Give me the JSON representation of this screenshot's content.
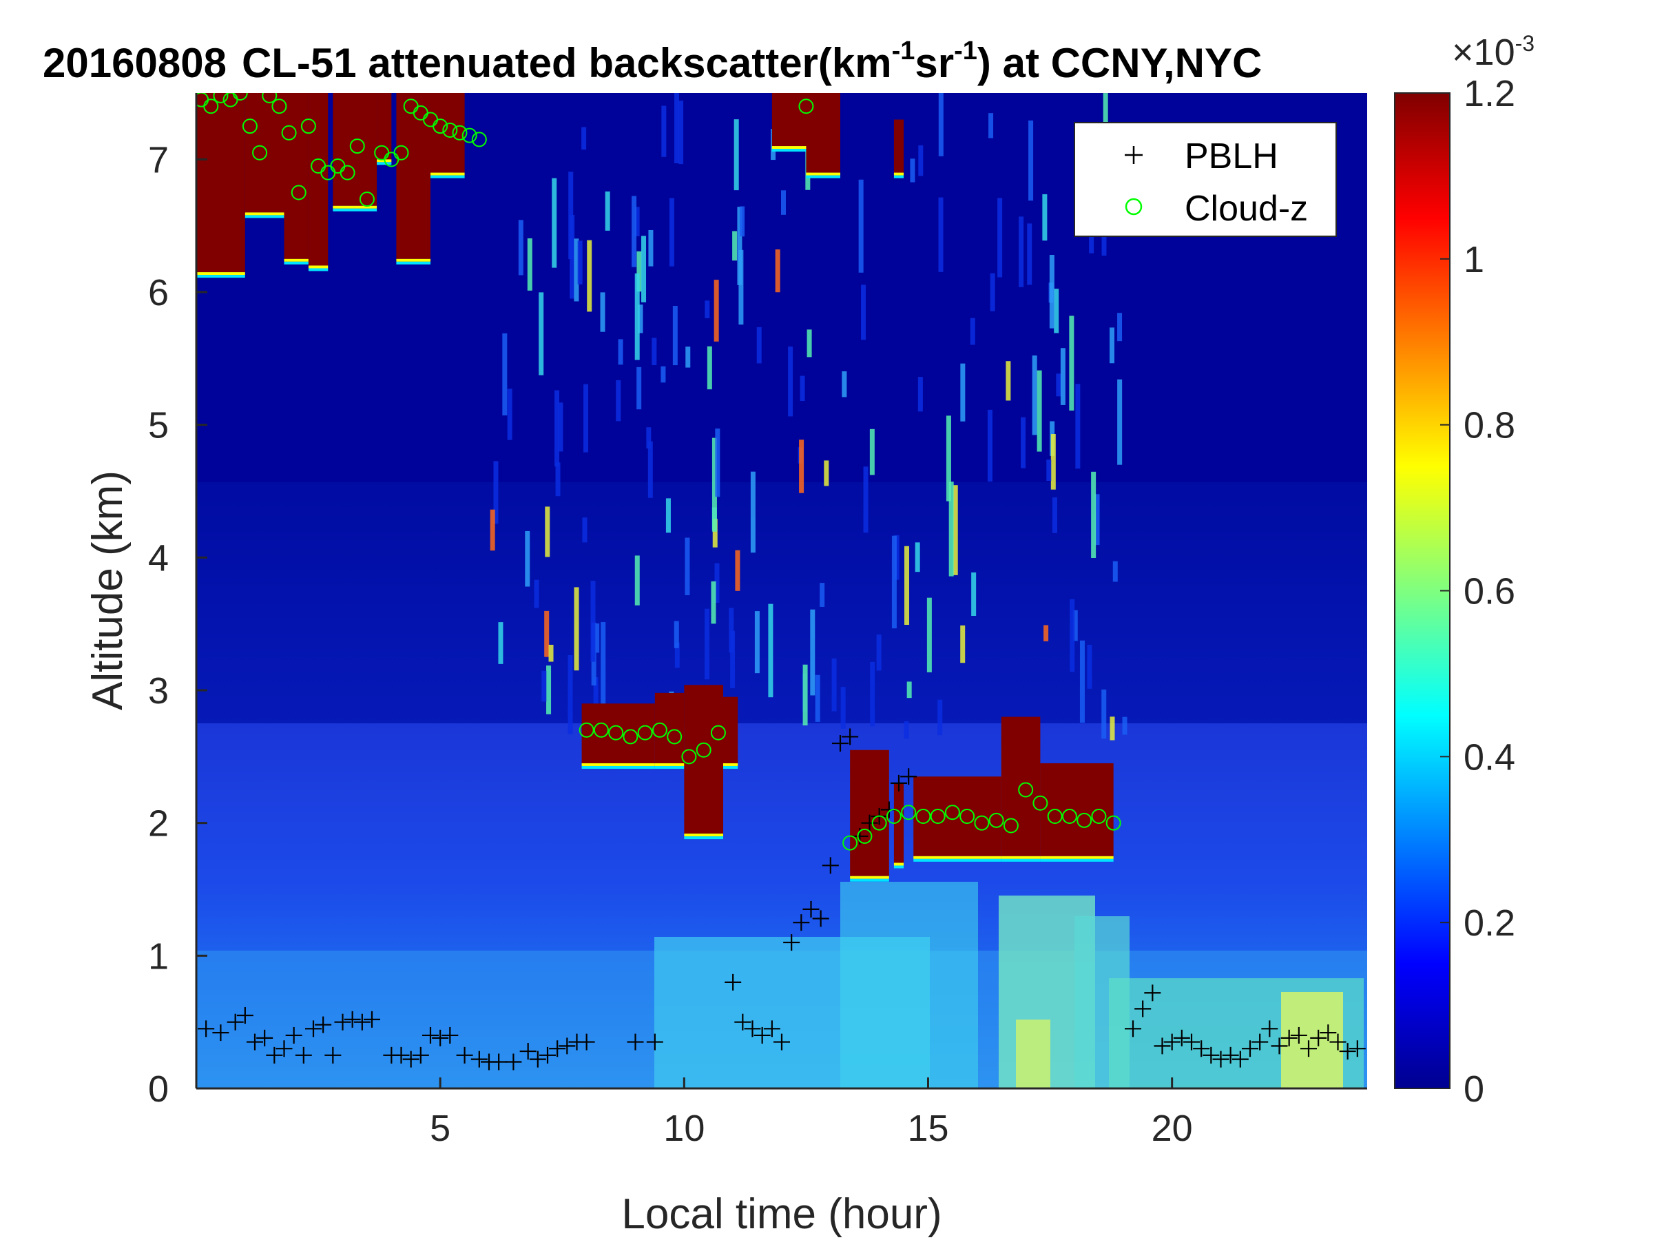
{
  "chart_data": {
    "type": "heatmap",
    "title": {
      "date": "20160808",
      "main": "CL-51 attenuated backscatter(km",
      "sup1": "-1",
      "mid": "sr",
      "sup2": "-1",
      "end": ") at CCNY,NYC"
    },
    "xlabel": "Local time (hour)",
    "ylabel": "Altitude (km)",
    "xlim": [
      0,
      24
    ],
    "ylim": [
      0,
      7.5
    ],
    "xticks": [
      "5",
      "10",
      "15",
      "20"
    ],
    "yticks": [
      "0",
      "1",
      "2",
      "3",
      "4",
      "5",
      "6",
      "7"
    ],
    "colorbar": {
      "min": 0,
      "max": 0.0012,
      "ticks": [
        "0",
        "0.2",
        "0.4",
        "0.6",
        "0.8",
        "1",
        "1.2"
      ],
      "exponent_label": "×10",
      "exponent": "-3",
      "colormap": "jet"
    },
    "legend": {
      "placement": "top-right",
      "entries": [
        {
          "label": "PBLH",
          "marker": "+",
          "color": "#000000"
        },
        {
          "label": "Cloud-z",
          "marker": "o",
          "color": "#00ff00"
        }
      ]
    },
    "cloud_regions": [
      {
        "t0": 0.0,
        "t1": 1.0,
        "base": 6.15,
        "top": 7.5
      },
      {
        "t0": 1.0,
        "t1": 1.8,
        "base": 6.6,
        "top": 7.5
      },
      {
        "t0": 1.8,
        "t1": 2.3,
        "base": 6.25,
        "top": 7.5
      },
      {
        "t0": 2.3,
        "t1": 2.7,
        "base": 6.2,
        "top": 7.5
      },
      {
        "t0": 2.8,
        "t1": 3.7,
        "base": 6.65,
        "top": 7.5
      },
      {
        "t0": 3.7,
        "t1": 4.0,
        "base": 7.0,
        "top": 7.5
      },
      {
        "t0": 4.1,
        "t1": 4.8,
        "base": 6.25,
        "top": 7.5
      },
      {
        "t0": 4.8,
        "t1": 5.5,
        "base": 6.9,
        "top": 7.5
      },
      {
        "t0": 11.8,
        "t1": 12.8,
        "base": 7.1,
        "top": 7.5
      },
      {
        "t0": 12.5,
        "t1": 13.2,
        "base": 6.9,
        "top": 7.5
      },
      {
        "t0": 14.3,
        "t1": 14.5,
        "base": 6.9,
        "top": 7.3
      },
      {
        "t0": 7.9,
        "t1": 9.4,
        "base": 2.45,
        "top": 2.9
      },
      {
        "t0": 9.4,
        "t1": 10.0,
        "base": 2.45,
        "top": 2.98
      },
      {
        "t0": 10.0,
        "t1": 10.8,
        "base": 1.92,
        "top": 3.04
      },
      {
        "t0": 10.8,
        "t1": 11.1,
        "base": 2.45,
        "top": 2.95
      },
      {
        "t0": 13.4,
        "t1": 14.2,
        "base": 1.6,
        "top": 2.55
      },
      {
        "t0": 14.3,
        "t1": 14.5,
        "base": 1.7,
        "top": 2.3
      },
      {
        "t0": 14.7,
        "t1": 16.5,
        "base": 1.75,
        "top": 2.35
      },
      {
        "t0": 16.5,
        "t1": 17.3,
        "base": 1.75,
        "top": 2.8
      },
      {
        "t0": 17.3,
        "t1": 18.8,
        "base": 1.75,
        "top": 2.45
      }
    ],
    "series": [
      {
        "name": "PBLH",
        "marker": "+",
        "x": [
          0.2,
          0.5,
          0.8,
          1.0,
          1.2,
          1.4,
          1.6,
          1.8,
          2.0,
          2.2,
          2.4,
          2.6,
          2.8,
          3.0,
          3.2,
          3.4,
          3.6,
          4.0,
          4.2,
          4.4,
          4.6,
          4.8,
          5.0,
          5.2,
          5.5,
          5.8,
          6.0,
          6.2,
          6.5,
          6.8,
          7.0,
          7.2,
          7.4,
          7.6,
          7.8,
          8.0,
          9.0,
          9.4,
          11.0,
          11.2,
          11.4,
          11.6,
          11.8,
          12.0,
          12.2,
          12.4,
          12.6,
          12.8,
          13.0,
          13.2,
          13.4,
          13.6,
          13.8,
          14.0,
          14.2,
          14.4,
          14.6,
          19.2,
          19.4,
          19.6,
          19.8,
          20.0,
          20.2,
          20.4,
          20.6,
          20.8,
          21.0,
          21.2,
          21.4,
          21.6,
          21.8,
          22.0,
          22.2,
          22.4,
          22.6,
          22.8,
          23.0,
          23.2,
          23.4,
          23.6,
          23.8
        ],
        "y": [
          0.45,
          0.42,
          0.5,
          0.55,
          0.35,
          0.38,
          0.25,
          0.3,
          0.4,
          0.25,
          0.45,
          0.48,
          0.25,
          0.5,
          0.52,
          0.5,
          0.52,
          0.25,
          0.25,
          0.22,
          0.25,
          0.4,
          0.38,
          0.4,
          0.25,
          0.22,
          0.2,
          0.2,
          0.2,
          0.28,
          0.22,
          0.25,
          0.3,
          0.32,
          0.35,
          0.35,
          0.35,
          0.35,
          0.8,
          0.5,
          0.45,
          0.4,
          0.45,
          0.35,
          1.1,
          1.25,
          1.35,
          1.28,
          1.68,
          2.6,
          2.65,
          1.9,
          2.0,
          2.05,
          2.1,
          2.3,
          2.35,
          0.45,
          0.6,
          0.72,
          0.32,
          0.35,
          0.38,
          0.35,
          0.3,
          0.25,
          0.22,
          0.25,
          0.22,
          0.3,
          0.35,
          0.45,
          0.32,
          0.38,
          0.4,
          0.3,
          0.38,
          0.42,
          0.35,
          0.28,
          0.3
        ]
      },
      {
        "name": "Cloud-z",
        "marker": "o",
        "x": [
          0.1,
          0.3,
          0.5,
          0.7,
          0.9,
          1.1,
          1.3,
          1.5,
          1.7,
          1.9,
          2.1,
          2.3,
          2.5,
          2.7,
          2.9,
          3.1,
          3.3,
          3.5,
          3.8,
          4.0,
          4.2,
          4.4,
          4.6,
          4.8,
          5.0,
          5.2,
          5.4,
          5.6,
          5.8,
          8.0,
          8.3,
          8.6,
          8.9,
          9.2,
          9.5,
          9.8,
          10.1,
          10.4,
          10.7,
          12.5,
          13.4,
          13.7,
          14.0,
          14.3,
          14.6,
          14.9,
          15.2,
          15.5,
          15.8,
          16.1,
          16.4,
          16.7,
          17.0,
          17.3,
          17.6,
          17.9,
          18.2,
          18.5,
          18.8
        ],
        "y": [
          7.45,
          7.4,
          7.48,
          7.45,
          7.5,
          7.25,
          7.05,
          7.48,
          7.4,
          7.2,
          6.75,
          7.25,
          6.95,
          6.9,
          6.95,
          6.9,
          7.1,
          6.7,
          7.05,
          7.0,
          7.05,
          7.4,
          7.35,
          7.3,
          7.25,
          7.22,
          7.2,
          7.18,
          7.15,
          2.7,
          2.7,
          2.68,
          2.65,
          2.68,
          2.7,
          2.65,
          2.5,
          2.55,
          2.68,
          7.4,
          1.85,
          1.9,
          2.0,
          2.05,
          2.08,
          2.05,
          2.05,
          2.08,
          2.05,
          2.0,
          2.02,
          1.98,
          2.25,
          2.15,
          2.05,
          2.05,
          2.02,
          2.05,
          2.0
        ]
      }
    ]
  }
}
